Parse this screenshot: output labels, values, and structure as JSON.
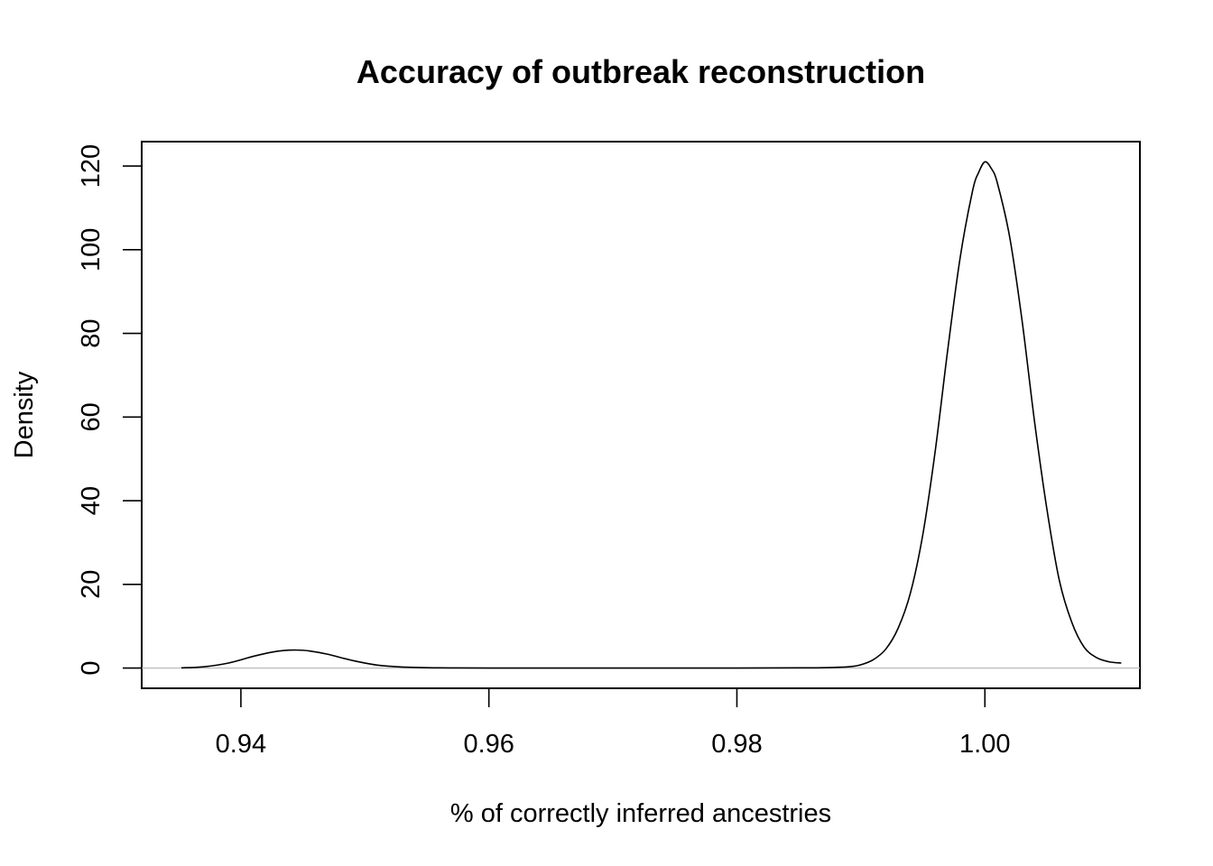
{
  "chart_data": {
    "type": "line",
    "title": "Accuracy of outbreak reconstruction",
    "xlabel": "% of correctly inferred ancestries",
    "ylabel": "Density",
    "xlim": [
      0.932,
      1.0125
    ],
    "ylim": [
      -4.84,
      125.84
    ],
    "x_ticks": [
      0.94,
      0.96,
      0.98,
      1.0
    ],
    "x_tick_labels": [
      "0.94",
      "0.96",
      "0.98",
      "1.00"
    ],
    "y_ticks": [
      0,
      20,
      40,
      60,
      80,
      100,
      120
    ],
    "y_tick_labels": [
      "0",
      "20",
      "40",
      "60",
      "80",
      "100",
      "120"
    ],
    "zero_line_color": "#bebebe",
    "line_color": "#000000",
    "series": [
      {
        "x": [
          0.9352,
          0.937,
          0.939,
          0.941,
          0.9425,
          0.9435,
          0.9445,
          0.9455,
          0.947,
          0.949,
          0.951,
          0.953,
          0.956,
          0.96,
          0.97,
          0.98,
          0.986,
          0.989,
          0.99,
          0.991,
          0.992,
          0.993,
          0.994,
          0.995,
          0.996,
          0.997,
          0.998,
          0.999,
          0.9995,
          1.0,
          1.0005,
          1.001,
          1.002,
          1.003,
          1.004,
          1.005,
          1.006,
          1.007,
          1.008,
          1.009,
          1.01,
          1.011
        ],
        "y": [
          0.05,
          0.3,
          1.2,
          2.8,
          3.8,
          4.2,
          4.3,
          4.1,
          3.3,
          1.8,
          0.7,
          0.25,
          0.05,
          0.0,
          0.0,
          0.0,
          0.05,
          0.3,
          0.8,
          2.0,
          4.5,
          9.5,
          18.0,
          32.0,
          52.0,
          76.0,
          98.0,
          114.0,
          118.5,
          121.0,
          119.5,
          116.0,
          103.0,
          83.0,
          59.0,
          38.0,
          21.0,
          11.0,
          5.0,
          2.5,
          1.5,
          1.2
        ]
      }
    ]
  }
}
